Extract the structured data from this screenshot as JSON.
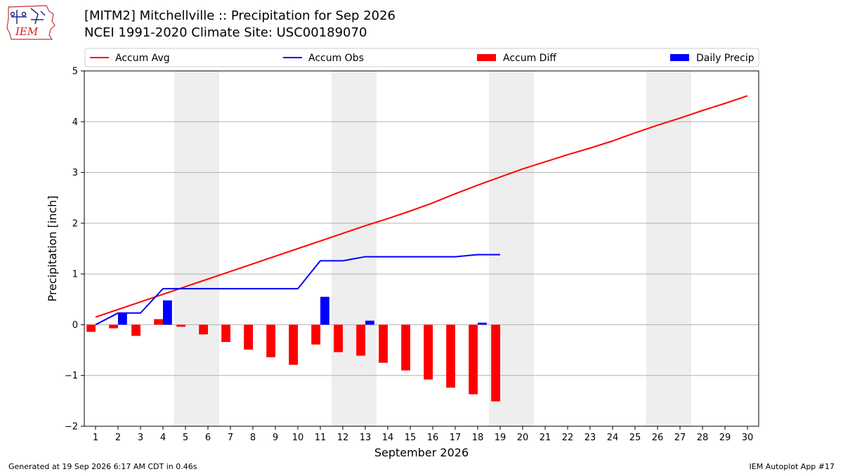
{
  "header": {
    "title_line1": "[MITM2] Mitchellville :: Precipitation for Sep 2026",
    "title_line2": "NCEI 1991-2020 Climate Site: USC00189070",
    "logo_text": "IEM",
    "logo_icon": "iowa-map-weather-station-icon"
  },
  "footer": {
    "generated": "Generated at 19 Sep 2026 6:17 AM CDT in 0.46s",
    "app": "IEM Autoplot App #17"
  },
  "chart_data": {
    "type": "bar",
    "xlabel": "September 2026",
    "ylabel": "Precipitation [inch]",
    "xlim": [
      0.5,
      30.5
    ],
    "ylim": [
      -2,
      5
    ],
    "yticks": [
      -2,
      -1,
      0,
      1,
      2,
      3,
      4,
      5
    ],
    "ytick_labels": [
      "−2",
      "−1",
      "0",
      "1",
      "2",
      "3",
      "4",
      "5"
    ],
    "days": [
      1,
      2,
      3,
      4,
      5,
      6,
      7,
      8,
      9,
      10,
      11,
      12,
      13,
      14,
      15,
      16,
      17,
      18,
      19,
      20,
      21,
      22,
      23,
      24,
      25,
      26,
      27,
      28,
      29,
      30
    ],
    "grid": "horizontal",
    "weekend_shading": [
      [
        5,
        6
      ],
      [
        12,
        13
      ],
      [
        19,
        20
      ],
      [
        26,
        27
      ]
    ],
    "legend": {
      "placement": "top",
      "entries": [
        {
          "label": "Accum Avg",
          "kind": "line",
          "color": "#ff0000"
        },
        {
          "label": "Accum Obs",
          "kind": "line",
          "color": "#0000ff"
        },
        {
          "label": "Accum Diff",
          "kind": "bar",
          "color": "#ff0000"
        },
        {
          "label": "Daily Precip",
          "kind": "bar",
          "color": "#0000ff"
        }
      ]
    },
    "series": [
      {
        "name": "Accum Avg",
        "kind": "line",
        "color": "#ff0000",
        "x": [
          1,
          2,
          3,
          4,
          5,
          6,
          7,
          8,
          9,
          10,
          11,
          12,
          13,
          14,
          15,
          16,
          17,
          18,
          19,
          20,
          21,
          22,
          23,
          24,
          25,
          26,
          27,
          28,
          29,
          30
        ],
        "values": [
          0.15,
          0.3,
          0.45,
          0.6,
          0.75,
          0.9,
          1.05,
          1.2,
          1.35,
          1.5,
          1.65,
          1.8,
          1.95,
          2.09,
          2.24,
          2.4,
          2.58,
          2.75,
          2.91,
          3.07,
          3.21,
          3.35,
          3.48,
          3.62,
          3.78,
          3.93,
          4.07,
          4.22,
          4.36,
          4.51
        ]
      },
      {
        "name": "Accum Obs",
        "kind": "line",
        "color": "#0000ff",
        "x": [
          1,
          2,
          3,
          4,
          5,
          6,
          7,
          8,
          9,
          10,
          11,
          12,
          13,
          14,
          15,
          16,
          17,
          18,
          19
        ],
        "values": [
          0.0,
          0.23,
          0.23,
          0.71,
          0.71,
          0.71,
          0.71,
          0.71,
          0.71,
          0.71,
          1.26,
          1.26,
          1.34,
          1.34,
          1.34,
          1.34,
          1.34,
          1.38,
          1.38
        ]
      },
      {
        "name": "Accum Diff",
        "kind": "bar",
        "color": "#ff0000",
        "offset": -0.2,
        "x": [
          1,
          2,
          3,
          4,
          5,
          6,
          7,
          8,
          9,
          10,
          11,
          12,
          13,
          14,
          15,
          16,
          17,
          18,
          19
        ],
        "values": [
          -0.14,
          -0.07,
          -0.22,
          0.11,
          -0.04,
          -0.19,
          -0.34,
          -0.49,
          -0.64,
          -0.79,
          -0.39,
          -0.54,
          -0.61,
          -0.75,
          -0.9,
          -1.08,
          -1.24,
          -1.37,
          -1.51
        ]
      },
      {
        "name": "Daily Precip",
        "kind": "bar",
        "color": "#0000ff",
        "offset": 0.2,
        "x": [
          1,
          2,
          3,
          4,
          5,
          6,
          7,
          8,
          9,
          10,
          11,
          12,
          13,
          14,
          15,
          16,
          17,
          18,
          19
        ],
        "values": [
          0.0,
          0.23,
          0.0,
          0.48,
          0.0,
          0.0,
          0.0,
          0.0,
          0.0,
          0.0,
          0.55,
          0.0,
          0.08,
          0.0,
          0.0,
          0.0,
          0.0,
          0.04,
          0.0
        ]
      }
    ]
  }
}
